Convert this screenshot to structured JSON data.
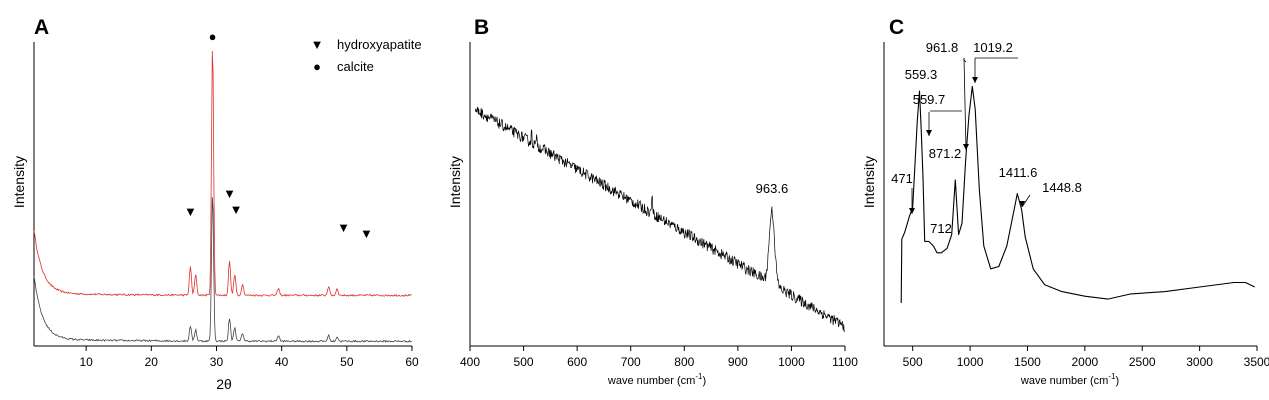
{
  "chart_data": [
    {
      "panel": "A",
      "type": "line",
      "xlabel": "2θ",
      "ylabel": "Intensity",
      "xlim": [
        2,
        60
      ],
      "xticks": [
        "10",
        "20",
        "30",
        "40",
        "50",
        "60"
      ],
      "legend": [
        {
          "symbol": "▼",
          "label": "hydroxyapatite"
        },
        {
          "symbol": "●",
          "label": "calcite"
        }
      ],
      "legend_position": "top-right",
      "series": [
        {
          "color": "#e03030",
          "baseline": 0.4,
          "peaks": [
            [
              26.0,
              0.25
            ],
            [
              26.8,
              0.18
            ],
            [
              29.4,
              2.2
            ],
            [
              32.0,
              0.3
            ],
            [
              32.8,
              0.18
            ],
            [
              34.0,
              0.1
            ],
            [
              39.5,
              0.06
            ],
            [
              47.2,
              0.08
            ],
            [
              48.5,
              0.06
            ]
          ]
        },
        {
          "color": "#444444",
          "baseline": 0.0,
          "peaks": [
            [
              26.0,
              0.13
            ],
            [
              26.8,
              0.1
            ],
            [
              29.4,
              1.3
            ],
            [
              32.0,
              0.2
            ],
            [
              32.8,
              0.12
            ],
            [
              34.0,
              0.07
            ],
            [
              39.5,
              0.05
            ],
            [
              47.2,
              0.05
            ],
            [
              48.5,
              0.04
            ]
          ]
        }
      ],
      "markers": [
        {
          "symbol": "▼",
          "x": 26.0
        },
        {
          "symbol": "▼",
          "x": 32.0
        },
        {
          "symbol": "▼",
          "x": 33.0
        },
        {
          "symbol": "▼",
          "x": 49.5
        },
        {
          "symbol": "▼",
          "x": 53.0
        },
        {
          "symbol": "●",
          "x": 29.4
        }
      ]
    },
    {
      "panel": "B",
      "type": "line",
      "xlabel": "wave number (cm",
      "xlabel_sup": "-1",
      "xlabel_end": ")",
      "ylabel": "Intensity",
      "xlim": [
        400,
        1100
      ],
      "xticks": [
        "400",
        "500",
        "600",
        "700",
        "800",
        "900",
        "1000",
        "1100"
      ],
      "series": [
        {
          "color": "#000000",
          "start_level": 0.92,
          "end_level": 0.03,
          "peaks": [
            [
              963.6,
              0.3
            ],
            [
              515,
              0.05
            ],
            [
              525,
              0.04
            ],
            [
              740,
              0.1
            ]
          ]
        }
      ],
      "annotations": [
        {
          "x": 963.6,
          "label": "963.6"
        }
      ]
    },
    {
      "panel": "C",
      "type": "line",
      "xlabel": "wave number (cm",
      "xlabel_sup": "-1",
      "xlabel_end": ")",
      "ylabel": "Intensity",
      "xlim": [
        250,
        3500
      ],
      "xticks": [
        "500",
        "1000",
        "1500",
        "2000",
        "2500",
        "3000",
        "3500"
      ],
      "series": [
        {
          "color": "#000000",
          "points": [
            [
              400,
              0.0
            ],
            [
              405,
              0.28
            ],
            [
              430,
              0.31
            ],
            [
              471,
              0.38
            ],
            [
              500,
              0.42
            ],
            [
              540,
              0.8
            ],
            [
              559.3,
              0.93
            ],
            [
              575,
              0.75
            ],
            [
              590,
              0.55
            ],
            [
              605,
              0.27
            ],
            [
              640,
              0.27
            ],
            [
              680,
              0.25
            ],
            [
              712,
              0.22
            ],
            [
              750,
              0.22
            ],
            [
              800,
              0.24
            ],
            [
              840,
              0.3
            ],
            [
              871.2,
              0.54
            ],
            [
              900,
              0.3
            ],
            [
              930,
              0.35
            ],
            [
              961.8,
              0.63
            ],
            [
              990,
              0.82
            ],
            [
              1019.2,
              0.95
            ],
            [
              1045,
              0.85
            ],
            [
              1080,
              0.5
            ],
            [
              1120,
              0.25
            ],
            [
              1180,
              0.15
            ],
            [
              1250,
              0.16
            ],
            [
              1320,
              0.25
            ],
            [
              1380,
              0.4
            ],
            [
              1411.6,
              0.48
            ],
            [
              1448.8,
              0.41
            ],
            [
              1480,
              0.29
            ],
            [
              1550,
              0.15
            ],
            [
              1650,
              0.08
            ],
            [
              1800,
              0.05
            ],
            [
              2000,
              0.03
            ],
            [
              2200,
              0.03
            ],
            [
              2400,
              0.04
            ],
            [
              2700,
              0.05
            ],
            [
              3000,
              0.07
            ],
            [
              3300,
              0.09
            ],
            [
              3400,
              0.09
            ],
            [
              3480,
              0.07
            ]
          ]
        }
      ],
      "annotations": [
        {
          "x": 471,
          "label": "471"
        },
        {
          "x": 559.3,
          "label": "559.3"
        },
        {
          "x": 559.7,
          "label": "559.7"
        },
        {
          "x": 712,
          "label": "712"
        },
        {
          "x": 871.2,
          "label": "871.2"
        },
        {
          "x": 961.8,
          "label": "961.8"
        },
        {
          "x": 1019.2,
          "label": "1019.2"
        },
        {
          "x": 1411.6,
          "label": "1411.6"
        },
        {
          "x": 1448.8,
          "label": "1448.8"
        }
      ]
    }
  ]
}
